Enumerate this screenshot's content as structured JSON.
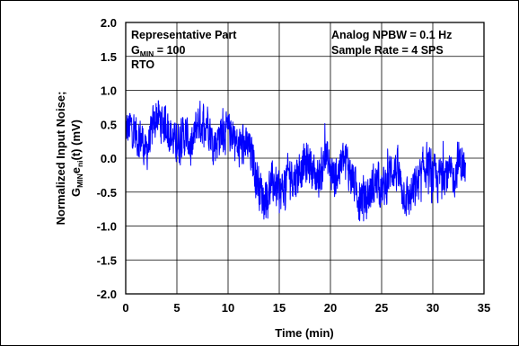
{
  "chart_data": {
    "type": "line",
    "title": "",
    "xlabel": "Time (min)",
    "ylabel_line1": "Normalized Input Noise;",
    "ylabel_line2": {
      "g": "G",
      "g_sub": "MIN",
      "e": "e",
      "e_sub": "ni",
      "rest": "(t) (mV)"
    },
    "xlim": [
      0,
      35
    ],
    "ylim": [
      -2.0,
      2.0
    ],
    "x_ticks": [
      "0",
      "5",
      "10",
      "15",
      "20",
      "25",
      "30",
      "35"
    ],
    "y_ticks": [
      "2.0",
      "1.5",
      "1.0",
      "0.5",
      "0.0",
      "-0.5",
      "-1.0",
      "-1.5",
      "-2.0"
    ],
    "grid": true,
    "line_color": "#0000ff",
    "annotations_left": {
      "line1": "Representative Part",
      "line2": {
        "g": "G",
        "sub": "MIN",
        "rest": " = 100"
      },
      "line3": "RTO"
    },
    "annotations_right": {
      "line1": "Analog NPBW = 0.1 Hz",
      "line2": "Sample Rate = 4 SPS"
    },
    "series": [
      {
        "x": [
          0,
          0.5,
          1,
          1.5,
          2,
          2.5,
          3,
          3.5,
          4,
          4.5,
          5,
          5.5,
          6,
          6.5,
          7,
          7.5,
          8,
          8.5,
          9,
          9.5,
          10,
          10.5,
          11,
          11.5,
          12,
          12.5,
          13,
          13.5,
          14,
          14.5,
          15,
          15.5,
          16,
          16.5,
          17,
          17.5,
          18,
          18.5,
          19,
          19.5,
          20,
          20.5,
          21,
          21.5,
          22,
          22.5,
          23,
          23.5,
          24,
          24.5,
          25,
          25.5,
          26,
          26.5,
          27,
          27.5,
          28,
          28.5,
          29,
          29.5,
          30,
          30.5,
          31,
          31.5,
          32,
          32.5,
          33,
          33.2
        ],
        "y": [
          0.4,
          0.45,
          0.35,
          0.3,
          0.1,
          0.35,
          0.65,
          0.5,
          0.55,
          0.3,
          0.2,
          0.35,
          0.3,
          0.15,
          0.55,
          0.5,
          0.6,
          0.2,
          0.3,
          0.45,
          0.35,
          0.4,
          0.1,
          0.2,
          0.15,
          -0.05,
          -0.4,
          -0.6,
          -0.45,
          -0.35,
          -0.55,
          -0.4,
          -0.2,
          -0.3,
          -0.15,
          -0.1,
          -0.05,
          -0.3,
          -0.25,
          0.05,
          -0.2,
          -0.3,
          -0.1,
          0.0,
          -0.25,
          -0.45,
          -0.55,
          -0.6,
          -0.45,
          -0.35,
          -0.5,
          -0.35,
          -0.15,
          -0.2,
          -0.45,
          -0.6,
          -0.55,
          -0.35,
          -0.2,
          -0.05,
          -0.25,
          -0.35,
          -0.15,
          -0.25,
          -0.3,
          -0.05,
          -0.1,
          -0.3
        ],
        "min": [
          0.3,
          0.2,
          0.05,
          0.0,
          -0.45,
          0.1,
          0.3,
          0.15,
          0.25,
          -0.05,
          -0.1,
          -0.1,
          0.0,
          -0.15,
          0.2,
          0.15,
          0.2,
          -0.1,
          -0.05,
          0.1,
          -0.1,
          0.1,
          -0.35,
          -0.1,
          -0.3,
          -0.4,
          -0.85,
          -1.15,
          -0.8,
          -0.75,
          -0.9,
          -0.8,
          -0.6,
          -0.7,
          -0.6,
          -0.5,
          -0.35,
          -0.7,
          -0.6,
          -0.35,
          -0.55,
          -0.65,
          -0.5,
          -0.3,
          -0.65,
          -0.85,
          -0.95,
          -0.9,
          -0.8,
          -0.75,
          -0.85,
          -0.7,
          -0.5,
          -0.6,
          -0.9,
          -1.15,
          -0.95,
          -0.75,
          -0.6,
          -0.5,
          -0.7,
          -0.75,
          -0.55,
          -0.65,
          -0.7,
          -0.4,
          -0.45,
          -0.55
        ],
        "max": [
          0.7,
          0.7,
          0.6,
          0.55,
          0.3,
          0.65,
          1.1,
          0.85,
          0.85,
          0.55,
          0.5,
          0.6,
          0.6,
          0.45,
          0.95,
          0.8,
          0.95,
          0.55,
          0.6,
          0.75,
          0.65,
          0.7,
          0.4,
          0.5,
          0.4,
          0.25,
          -0.05,
          -0.3,
          -0.1,
          0.05,
          -0.2,
          -0.05,
          0.2,
          0.05,
          0.3,
          0.35,
          0.3,
          0.05,
          0.1,
          0.55,
          0.1,
          -0.05,
          0.3,
          0.4,
          0.05,
          -0.15,
          -0.2,
          -0.25,
          -0.1,
          0.0,
          -0.15,
          0.1,
          0.3,
          0.25,
          -0.1,
          -0.25,
          -0.2,
          -0.05,
          0.15,
          0.35,
          0.1,
          0.0,
          0.25,
          0.15,
          0.05,
          0.6,
          0.35,
          0.05
        ]
      }
    ]
  }
}
